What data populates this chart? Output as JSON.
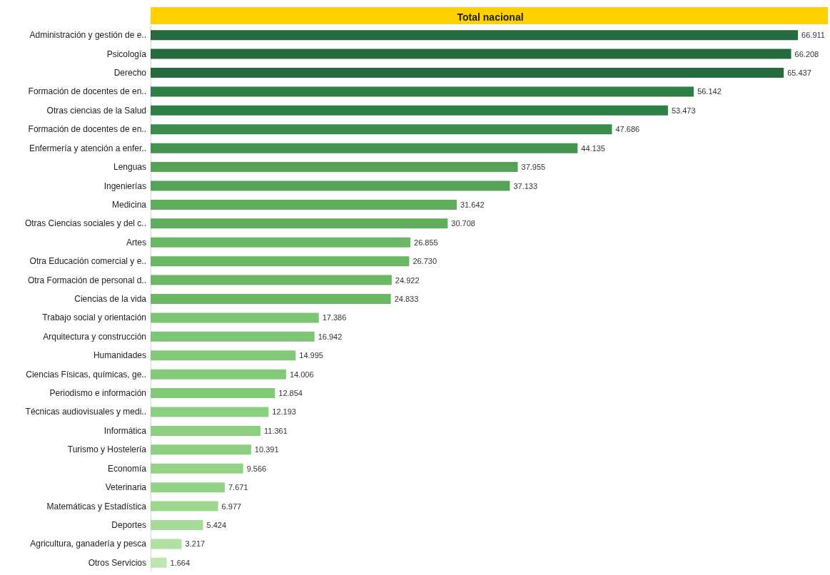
{
  "chart_data": {
    "type": "bar",
    "orientation": "horizontal",
    "title": "Total nacional",
    "categories": [
      "Administración y gestión de e..",
      "Psicología",
      "Derecho",
      "Formación de docentes de en..",
      "Otras ciencias de la Salud",
      "Formación de docentes de en..",
      "Enfermería y atención a enfer..",
      "Lenguas",
      "Ingenierías",
      "Medicina",
      "Otras Ciencias sociales y del c..",
      "Artes",
      "Otra Educación comercial y e..",
      "Otra Formación de personal d..",
      "Ciencias de la vida",
      "Trabajo social y orientación",
      "Arquitectura y construcción",
      "Humanidades",
      "Ciencias Físicas, químicas, ge..",
      "Periodismo e información",
      "Técnicas audiovisuales y medi..",
      "Informática",
      "Turismo y Hostelería",
      "Economía",
      "Veterinaria",
      "Matemáticas y Estadística",
      "Deportes",
      "Agricultura, ganadería y pesca",
      "Otros Servicios"
    ],
    "values": [
      66911,
      66208,
      65437,
      56142,
      53473,
      47686,
      44135,
      37955,
      37133,
      31642,
      30708,
      26855,
      26730,
      24922,
      24833,
      17386,
      16942,
      14995,
      14006,
      12854,
      12193,
      11361,
      10391,
      9566,
      7671,
      6977,
      5424,
      3217,
      1664
    ],
    "value_labels": [
      "66.911",
      "66.208",
      "65.437",
      "56.142",
      "53.473",
      "47.686",
      "44.135",
      "37.955",
      "37.133",
      "31.642",
      "30.708",
      "26.855",
      "26.730",
      "24.922",
      "24.833",
      "17.386",
      "16.942",
      "14.995",
      "14.006",
      "12.854",
      "12.193",
      "11.361",
      "10.391",
      "9.566",
      "7.671",
      "6.977",
      "5.424",
      "3.217",
      "1.664"
    ],
    "colors": [
      "#266b3e",
      "#266b3e",
      "#266b3e",
      "#2e7f45",
      "#2e7f45",
      "#3d8c4e",
      "#44944f",
      "#55a357",
      "#55a357",
      "#5fae5d",
      "#5fae5d",
      "#6ab864",
      "#6ab864",
      "#6ab864",
      "#6ab864",
      "#7cc574",
      "#7cc574",
      "#82c978",
      "#82c978",
      "#82c978",
      "#8ccf80",
      "#8ccf80",
      "#8ccf80",
      "#93d386",
      "#93d386",
      "#9cd78e",
      "#a5db96",
      "#b0e0a2",
      "#bde6b0"
    ],
    "relative": false
  }
}
